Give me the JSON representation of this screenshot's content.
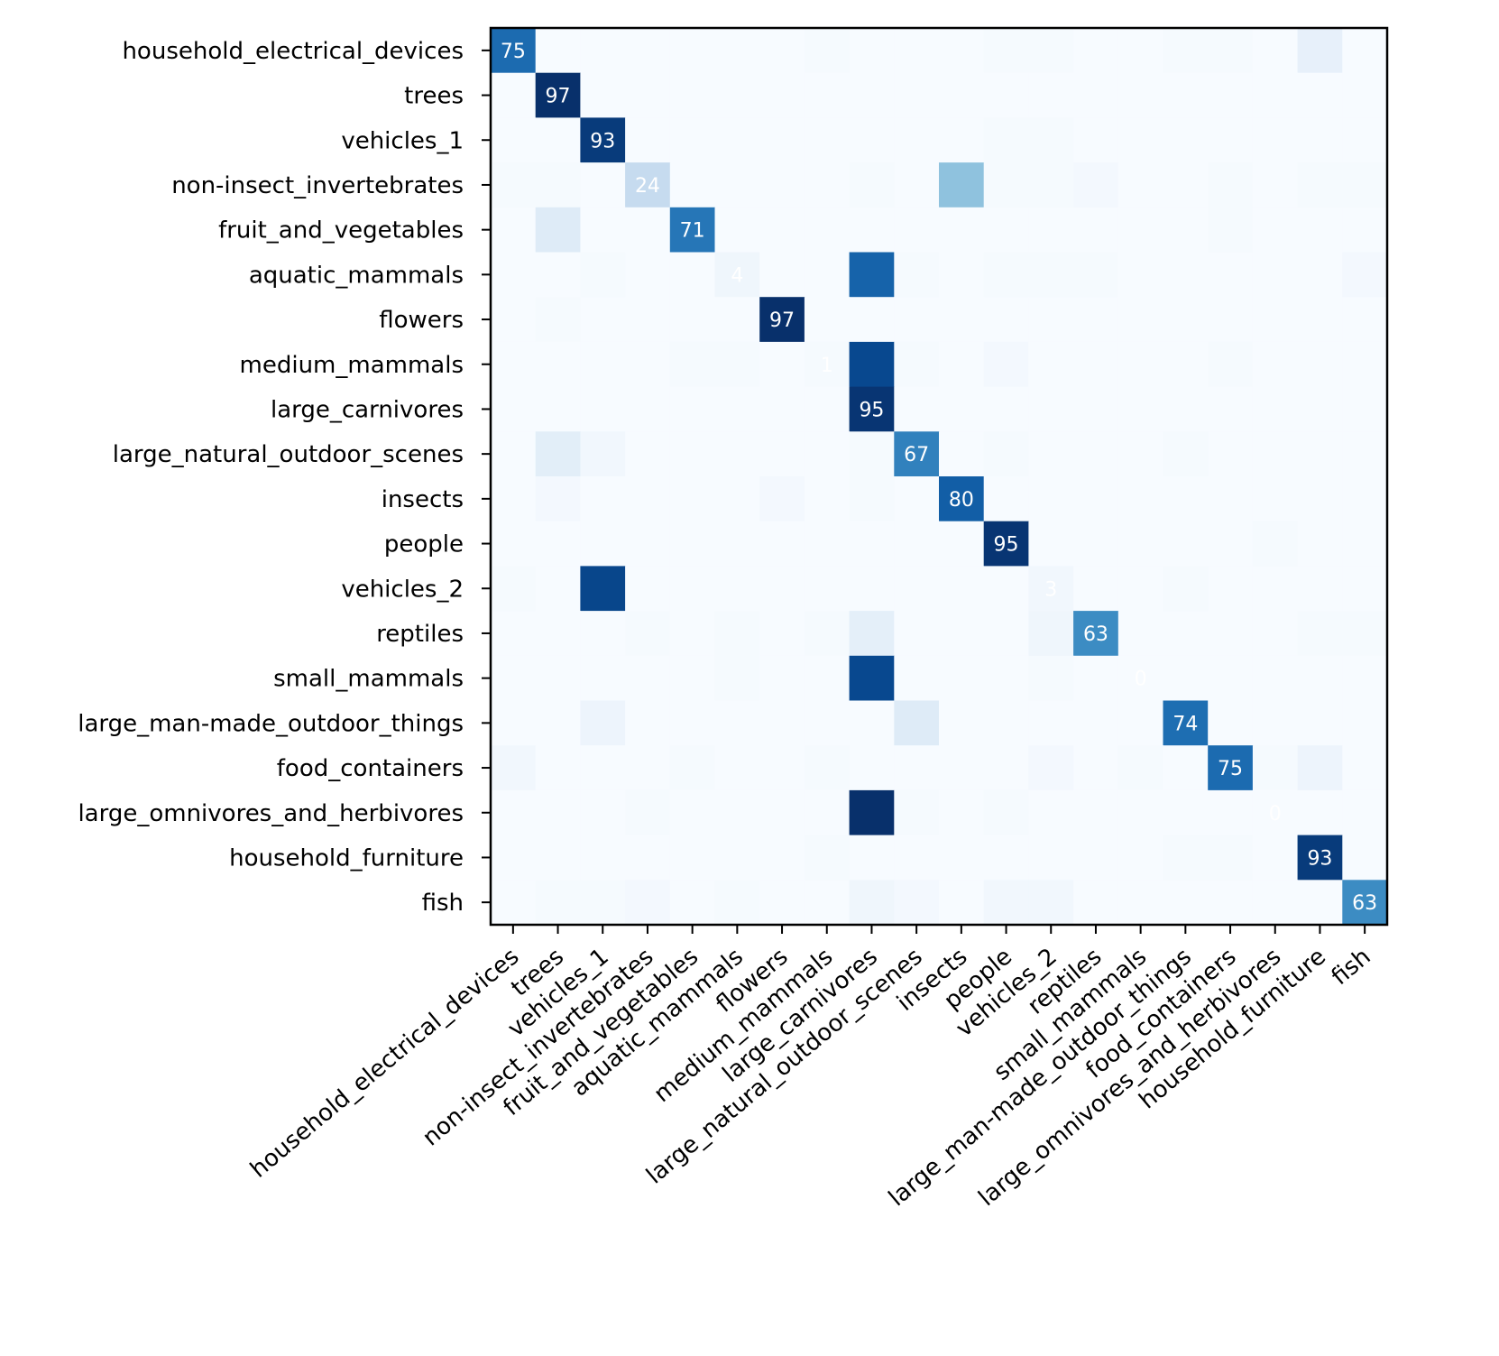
{
  "chart_data": {
    "type": "heatmap",
    "colormap": "Blues",
    "vmax": 97,
    "categories": [
      "household_electrical_devices",
      "trees",
      "vehicles_1",
      "non-insect_invertebrates",
      "fruit_and_vegetables",
      "aquatic_mammals",
      "flowers",
      "medium_mammals",
      "large_carnivores",
      "large_natural_outdoor_scenes",
      "insects",
      "people",
      "vehicles_2",
      "reptiles",
      "small_mammals",
      "large_man-made_outdoor_things",
      "food_containers",
      "large_omnivores_and_herbivores",
      "household_furniture",
      "fish"
    ],
    "matrix": [
      [
        75,
        0,
        0,
        0,
        0,
        0,
        0,
        1,
        0,
        0,
        0,
        1,
        1,
        0,
        0,
        1,
        1,
        0,
        8,
        0
      ],
      [
        0,
        97,
        0,
        0,
        0,
        0,
        0,
        0,
        0,
        0,
        0,
        0,
        0,
        0,
        0,
        0,
        0,
        0,
        0,
        0
      ],
      [
        0,
        0,
        93,
        0,
        0,
        0,
        0,
        0,
        0,
        0,
        0,
        1,
        1,
        0,
        0,
        0,
        0,
        0,
        0,
        0
      ],
      [
        1,
        1,
        0,
        24,
        0,
        0,
        0,
        0,
        1,
        0,
        40,
        1,
        1,
        2,
        0,
        0,
        1,
        0,
        1,
        1
      ],
      [
        0,
        12,
        0,
        0,
        71,
        0,
        0,
        0,
        0,
        0,
        0,
        0,
        0,
        0,
        0,
        0,
        1,
        0,
        0,
        0
      ],
      [
        0,
        0,
        1,
        0,
        0,
        4,
        0,
        0,
        78,
        1,
        0,
        1,
        1,
        1,
        0,
        0,
        0,
        0,
        0,
        2
      ],
      [
        0,
        1,
        0,
        0,
        0,
        0,
        97,
        0,
        0,
        0,
        0,
        0,
        0,
        0,
        0,
        0,
        0,
        0,
        0,
        0
      ],
      [
        0,
        0,
        0,
        0,
        1,
        1,
        0,
        1,
        88,
        1,
        0,
        2,
        0,
        0,
        0,
        0,
        1,
        0,
        0,
        0
      ],
      [
        0,
        0,
        0,
        0,
        0,
        0,
        0,
        0,
        95,
        0,
        0,
        0,
        0,
        0,
        0,
        0,
        0,
        0,
        0,
        0
      ],
      [
        0,
        10,
        3,
        0,
        0,
        0,
        0,
        0,
        1,
        67,
        0,
        1,
        0,
        0,
        0,
        1,
        0,
        0,
        0,
        0
      ],
      [
        0,
        2,
        0,
        0,
        0,
        0,
        2,
        0,
        1,
        0,
        80,
        0,
        0,
        0,
        0,
        0,
        0,
        0,
        0,
        0
      ],
      [
        0,
        0,
        0,
        0,
        0,
        0,
        0,
        0,
        0,
        0,
        0,
        95,
        0,
        0,
        0,
        0,
        0,
        1,
        0,
        0
      ],
      [
        1,
        0,
        89,
        0,
        0,
        0,
        0,
        0,
        0,
        0,
        0,
        0,
        3,
        0,
        0,
        1,
        0,
        0,
        0,
        0
      ],
      [
        0,
        0,
        0,
        1,
        0,
        1,
        0,
        1,
        9,
        0,
        0,
        0,
        4,
        63,
        0,
        0,
        0,
        0,
        1,
        1
      ],
      [
        0,
        0,
        0,
        0,
        0,
        1,
        0,
        0,
        88,
        0,
        0,
        0,
        1,
        0,
        0,
        0,
        0,
        0,
        0,
        0
      ],
      [
        0,
        0,
        5,
        0,
        0,
        0,
        0,
        0,
        0,
        12,
        0,
        0,
        0,
        0,
        0,
        74,
        0,
        0,
        0,
        0
      ],
      [
        3,
        0,
        0,
        0,
        1,
        0,
        0,
        1,
        0,
        0,
        0,
        0,
        2,
        0,
        1,
        0,
        75,
        1,
        5,
        0
      ],
      [
        0,
        0,
        0,
        1,
        0,
        0,
        0,
        0,
        97,
        1,
        0,
        1,
        0,
        0,
        0,
        0,
        0,
        0,
        0,
        0
      ],
      [
        0,
        0,
        0,
        0,
        0,
        0,
        0,
        1,
        0,
        0,
        0,
        0,
        0,
        0,
        0,
        1,
        1,
        0,
        93,
        0
      ],
      [
        0,
        1,
        1,
        2,
        0,
        1,
        0,
        0,
        4,
        2,
        0,
        3,
        3,
        0,
        0,
        0,
        0,
        0,
        0,
        63
      ]
    ],
    "diagonal_labels": [
      75,
      97,
      93,
      24,
      71,
      4,
      97,
      1,
      95,
      67,
      80,
      95,
      3,
      63,
      0,
      74,
      75,
      0,
      93,
      63
    ],
    "title": "",
    "xlabel": "",
    "ylabel": ""
  }
}
